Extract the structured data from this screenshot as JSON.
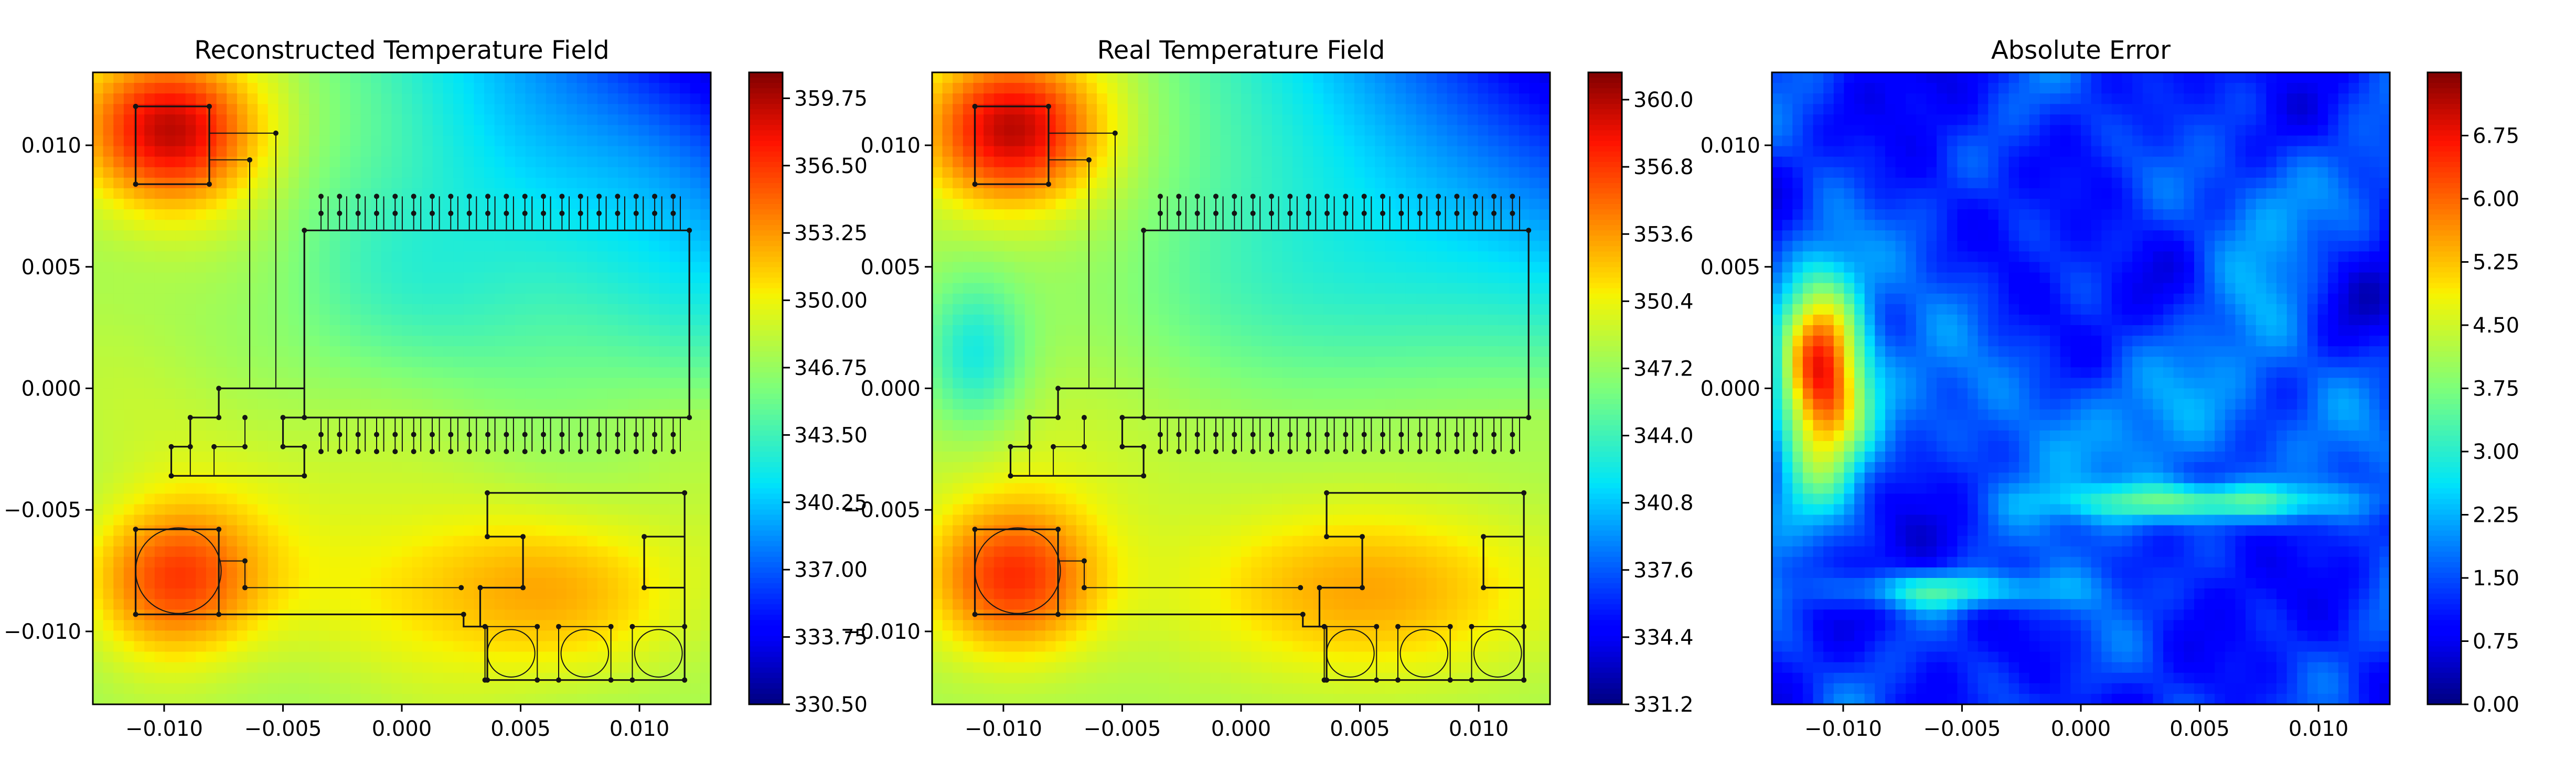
{
  "chart_data": [
    {
      "type": "heatmap",
      "title": "Reconstructed Temperature Field",
      "xlim": [
        -0.013,
        0.013
      ],
      "ylim": [
        -0.013,
        0.013
      ],
      "x_ticks": [
        -0.01,
        -0.005,
        0.0,
        0.005,
        0.01
      ],
      "x_tick_labels": [
        "−0.010",
        "−0.005",
        "0.000",
        "0.005",
        "0.010"
      ],
      "y_ticks": [
        0.01,
        0.005,
        0.0,
        -0.005,
        -0.01
      ],
      "y_tick_labels": [
        "0.010",
        "0.005",
        "0.000",
        "−0.005",
        "−0.010"
      ],
      "colormap": "jet",
      "colorbar": {
        "vmin": 330.5,
        "vmax": 361.0,
        "ticks": [
          330.5,
          333.75,
          337.0,
          340.25,
          343.5,
          346.75,
          350.0,
          353.25,
          356.5,
          359.75
        ],
        "tick_labels": [
          "330.50",
          "333.75",
          "337.00",
          "340.25",
          "343.50",
          "346.75",
          "350.00",
          "353.25",
          "356.50",
          "359.75"
        ]
      }
    },
    {
      "type": "heatmap",
      "title": "Real Temperature Field",
      "xlim": [
        -0.013,
        0.013
      ],
      "ylim": [
        -0.013,
        0.013
      ],
      "x_ticks": [
        -0.01,
        -0.005,
        0.0,
        0.005,
        0.01
      ],
      "x_tick_labels": [
        "−0.010",
        "−0.005",
        "0.000",
        "0.005",
        "0.010"
      ],
      "y_ticks": [
        0.01,
        0.005,
        0.0,
        -0.005,
        -0.01
      ],
      "y_tick_labels": [
        "0.010",
        "0.005",
        "0.000",
        "−0.005",
        "−0.010"
      ],
      "colormap": "jet",
      "colorbar": {
        "vmin": 331.2,
        "vmax": 361.3,
        "ticks": [
          331.2,
          334.4,
          337.6,
          340.8,
          344.0,
          347.2,
          350.4,
          353.6,
          356.8,
          360.0
        ],
        "tick_labels": [
          "331.2",
          "334.4",
          "337.6",
          "340.8",
          "344.0",
          "347.2",
          "350.4",
          "353.6",
          "356.8",
          "360.0"
        ]
      }
    },
    {
      "type": "heatmap",
      "title": "Absolute Error",
      "xlim": [
        -0.013,
        0.013
      ],
      "ylim": [
        -0.013,
        0.013
      ],
      "x_ticks": [
        -0.01,
        -0.005,
        0.0,
        0.005,
        0.01
      ],
      "x_tick_labels": [
        "−0.010",
        "−0.005",
        "0.000",
        "0.005",
        "0.010"
      ],
      "y_ticks": [
        0.01,
        0.005,
        0.0
      ],
      "y_tick_labels": [
        "0.010",
        "0.005",
        "0.000"
      ],
      "colormap": "jet",
      "colorbar": {
        "vmin": 0.0,
        "vmax": 7.5,
        "ticks": [
          0.0,
          0.75,
          1.5,
          2.25,
          3.0,
          3.75,
          4.5,
          5.25,
          6.0,
          6.75
        ],
        "tick_labels": [
          "0.00",
          "0.75",
          "1.50",
          "2.25",
          "3.00",
          "3.75",
          "4.50",
          "5.25",
          "6.00",
          "6.75"
        ]
      }
    }
  ]
}
